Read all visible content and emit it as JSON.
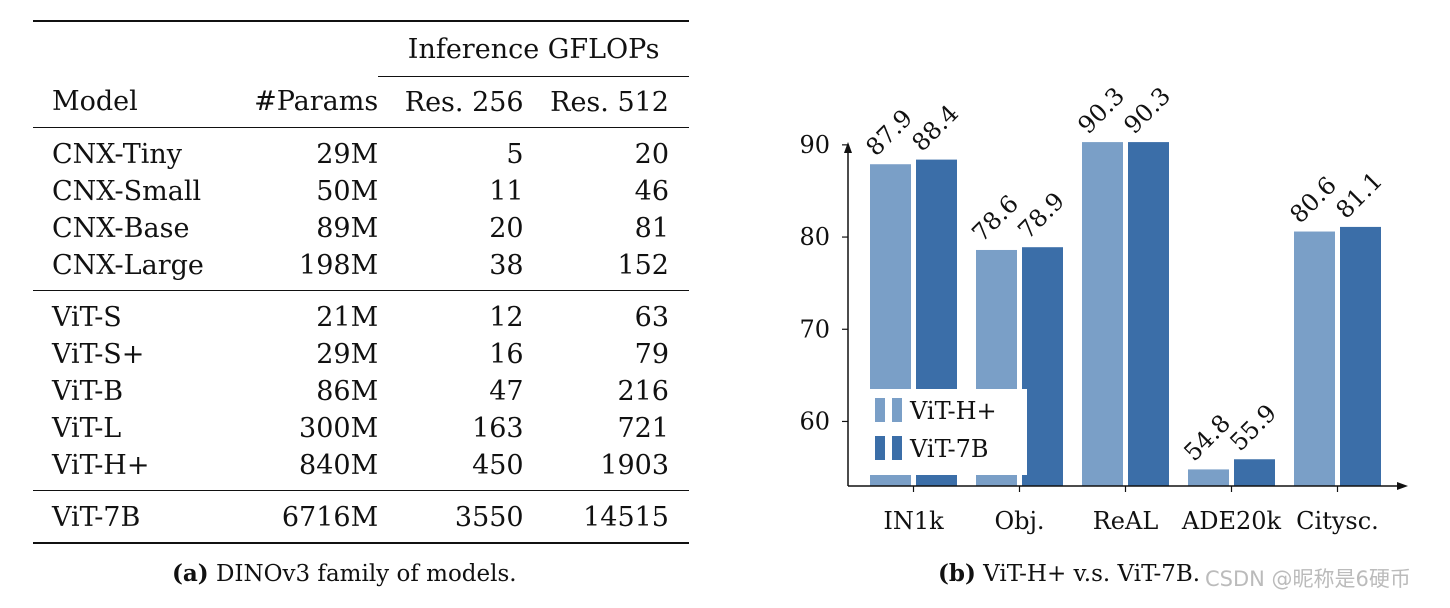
{
  "table": {
    "group_header": "Inference GFLOPs",
    "columns": [
      "Model",
      "#Params",
      "Res. 256",
      "Res. 512"
    ],
    "groups": [
      [
        [
          "CNX-Tiny",
          "29M",
          "5",
          "20"
        ],
        [
          "CNX-Small",
          "50M",
          "11",
          "46"
        ],
        [
          "CNX-Base",
          "89M",
          "20",
          "81"
        ],
        [
          "CNX-Large",
          "198M",
          "38",
          "152"
        ]
      ],
      [
        [
          "ViT-S",
          "21M",
          "12",
          "63"
        ],
        [
          "ViT-S+",
          "29M",
          "16",
          "79"
        ],
        [
          "ViT-B",
          "86M",
          "47",
          "216"
        ],
        [
          "ViT-L",
          "300M",
          "163",
          "721"
        ],
        [
          "ViT-H+",
          "840M",
          "450",
          "1903"
        ]
      ],
      [
        [
          "ViT-7B",
          "6716M",
          "3550",
          "14515"
        ]
      ]
    ]
  },
  "captions": {
    "a_label": "(a)",
    "a_text": "DINOv3 family of models.",
    "b_label": "(b)",
    "b_text": "ViT-H+ v.s. ViT-7B."
  },
  "watermark": "CSDN @昵称是6硬币",
  "chart_data": {
    "type": "bar",
    "categories": [
      "IN1k",
      "Obj.",
      "ReAL",
      "ADE20k",
      "Citysc."
    ],
    "series": [
      {
        "name": "ViT-H+",
        "values": [
          87.9,
          78.6,
          90.3,
          54.8,
          80.6
        ],
        "color": "#7a9fc7"
      },
      {
        "name": "ViT-7B",
        "values": [
          88.4,
          78.9,
          90.3,
          55.9,
          81.1
        ],
        "color": "#3b6ea8"
      }
    ],
    "ylim": [
      53,
      91
    ],
    "yticks": [
      60,
      70,
      80,
      90
    ],
    "legend_position": "lower-left",
    "xlabel": "",
    "ylabel": ""
  }
}
